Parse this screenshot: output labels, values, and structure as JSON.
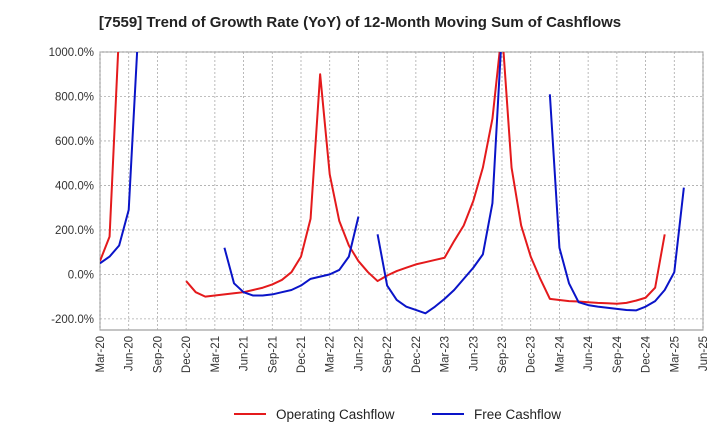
{
  "chart_data": {
    "type": "line",
    "title": "[7559]  Trend of Growth Rate (YoY) of 12-Month Moving Sum of Cashflows",
    "xlabel": "",
    "ylabel": "",
    "ylim": [
      -250,
      1000
    ],
    "grid": true,
    "legend_position": "bottom",
    "y_ticks": [
      -200,
      0,
      200,
      400,
      600,
      800,
      1000
    ],
    "y_tick_labels": [
      "-200.0%",
      "0.0%",
      "200.0%",
      "400.0%",
      "600.0%",
      "800.0%",
      "1000.0%"
    ],
    "x_tick_labels": [
      "Mar-20",
      "Jun-20",
      "Sep-20",
      "Dec-20",
      "Mar-21",
      "Jun-21",
      "Sep-21",
      "Dec-21",
      "Mar-22",
      "Jun-22",
      "Sep-22",
      "Dec-22",
      "Mar-23",
      "Jun-23",
      "Sep-23",
      "Dec-23",
      "Mar-24",
      "Jun-24",
      "Sep-24",
      "Dec-24",
      "Mar-25",
      "Jun-25"
    ],
    "x_start_month": "2020-03",
    "x_month_count": 63,
    "series": [
      {
        "name": "Operating Cashflow",
        "color": "#e41a1c",
        "values": [
          60,
          170,
          1100,
          null,
          null,
          null,
          null,
          null,
          null,
          null,
          null,
          null,
          null,
          null,
          null,
          null,
          null,
          null,
          null,
          null,
          null,
          null,
          null,
          null,
          null,
          null,
          null,
          null,
          null,
          null,
          null,
          null,
          null,
          null,
          null,
          null,
          null,
          null,
          null,
          null,
          null,
          null,
          null,
          null,
          null,
          null,
          null,
          null,
          null,
          null,
          null,
          null,
          null,
          null,
          null,
          null,
          null,
          null,
          null,
          null,
          null,
          null,
          null
        ]
      },
      {
        "name": "Free Cashflow",
        "color": "#0a14c8",
        "values": [
          50,
          80,
          130,
          290,
          1100,
          null,
          null,
          null,
          null,
          null,
          null,
          null,
          null,
          null,
          null,
          null,
          null,
          null,
          null,
          null,
          null,
          null,
          null,
          null,
          null,
          null,
          null,
          null,
          null,
          null,
          null,
          null,
          null,
          null,
          null,
          null,
          null,
          null,
          null,
          null,
          null,
          null,
          null,
          null,
          null,
          null,
          null,
          null,
          null,
          null,
          null,
          null,
          null,
          null,
          null,
          null,
          null,
          null,
          null,
          null,
          null,
          null,
          null
        ]
      }
    ]
  },
  "legend": {
    "items": [
      {
        "label": "Operating Cashflow",
        "color": "#e41a1c"
      },
      {
        "label": "Free Cashflow",
        "color": "#0a14c8"
      }
    ]
  }
}
